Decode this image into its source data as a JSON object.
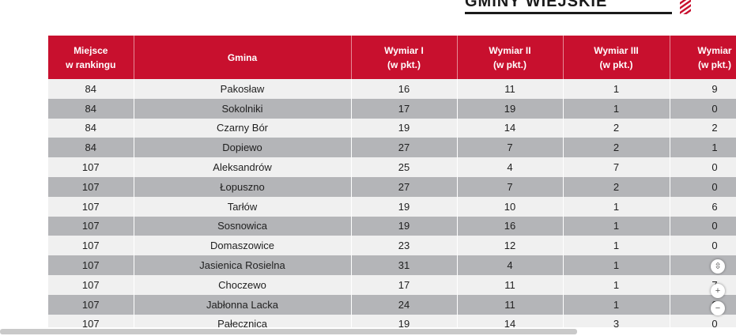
{
  "heading": {
    "text": "GMINY WIEJSKIE"
  },
  "table": {
    "columns": [
      "Miejsce\nw rankingu",
      "Gmina",
      "Wymiar I\n(w pkt.)",
      "Wymiar II\n(w pkt.)",
      "Wymiar III\n(w pkt.)",
      "Wymiar\n(w pkt.)"
    ],
    "rows": [
      [
        "84",
        "Pakosław",
        "16",
        "11",
        "1",
        "9"
      ],
      [
        "84",
        "Sokolniki",
        "17",
        "19",
        "1",
        "0"
      ],
      [
        "84",
        "Czarny Bór",
        "19",
        "14",
        "2",
        "2"
      ],
      [
        "84",
        "Dopiewo",
        "27",
        "7",
        "2",
        "1"
      ],
      [
        "107",
        "Aleksandrów",
        "25",
        "4",
        "7",
        "0"
      ],
      [
        "107",
        "Łopuszno",
        "27",
        "7",
        "2",
        "0"
      ],
      [
        "107",
        "Tarłów",
        "19",
        "10",
        "1",
        "6"
      ],
      [
        "107",
        "Sosnowica",
        "19",
        "16",
        "1",
        "0"
      ],
      [
        "107",
        "Domaszowice",
        "23",
        "12",
        "1",
        "0"
      ],
      [
        "107",
        "Jasienica Rosielna",
        "31",
        "4",
        "1",
        "0"
      ],
      [
        "107",
        "Choczewo",
        "17",
        "11",
        "1",
        "7"
      ],
      [
        "107",
        "Jabłonna Lacka",
        "24",
        "11",
        "1",
        "0"
      ],
      [
        "107",
        "Pałecznica",
        "19",
        "14",
        "3",
        "0"
      ]
    ]
  },
  "controls": {
    "fit_icon": "fit-to-page-icon",
    "fit_glyph": "⇳",
    "zoom_in_glyph": "+",
    "zoom_out_glyph": "−"
  },
  "colors": {
    "header_bg": "#c8102e",
    "row_light": "#f0f0f0",
    "row_dark": "#b4b5b8"
  }
}
